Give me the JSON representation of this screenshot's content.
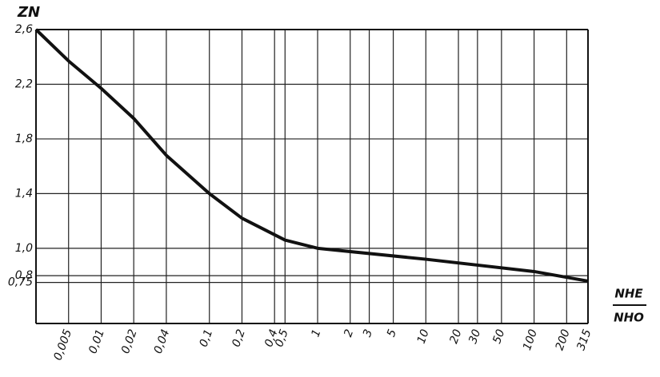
{
  "chart_data": {
    "type": "line",
    "ylabel": "ZN",
    "xlabel": {
      "numerator": "NHE",
      "denominator": "NHO"
    },
    "xlog": true,
    "grid": true,
    "color": "#111111",
    "xlim": [
      0.0025,
      315
    ],
    "ylim": [
      0.45,
      2.6
    ],
    "xticks": [
      {
        "value": 0.005,
        "label": "0,005"
      },
      {
        "value": 0.01,
        "label": "0,01"
      },
      {
        "value": 0.02,
        "label": "0,02"
      },
      {
        "value": 0.04,
        "label": "0,04"
      },
      {
        "value": 0.1,
        "label": "0,1"
      },
      {
        "value": 0.2,
        "label": "0,2"
      },
      {
        "value": 0.4,
        "label": "0,4"
      },
      {
        "value": 0.5,
        "label": "0,5"
      },
      1,
      2,
      3,
      5,
      10,
      20,
      30,
      50,
      100,
      200,
      315
    ],
    "yticks": [
      {
        "value": 2.6,
        "label": "2,6"
      },
      {
        "value": 2.2,
        "label": "2,2"
      },
      {
        "value": 1.8,
        "label": "1,8"
      },
      {
        "value": 1.4,
        "label": "1,4"
      },
      {
        "value": 1.0,
        "label": "1,0"
      },
      {
        "value": 0.8,
        "label": "0,8"
      },
      {
        "value": 0.75,
        "label": "0,75"
      }
    ],
    "x": [
      0.0025,
      0.005,
      0.01,
      0.02,
      0.04,
      0.1,
      0.2,
      0.5,
      1,
      10,
      100,
      315
    ],
    "values": [
      2.6,
      2.37,
      2.17,
      1.95,
      1.68,
      1.4,
      1.22,
      1.06,
      1.0,
      0.92,
      0.83,
      0.76
    ]
  }
}
